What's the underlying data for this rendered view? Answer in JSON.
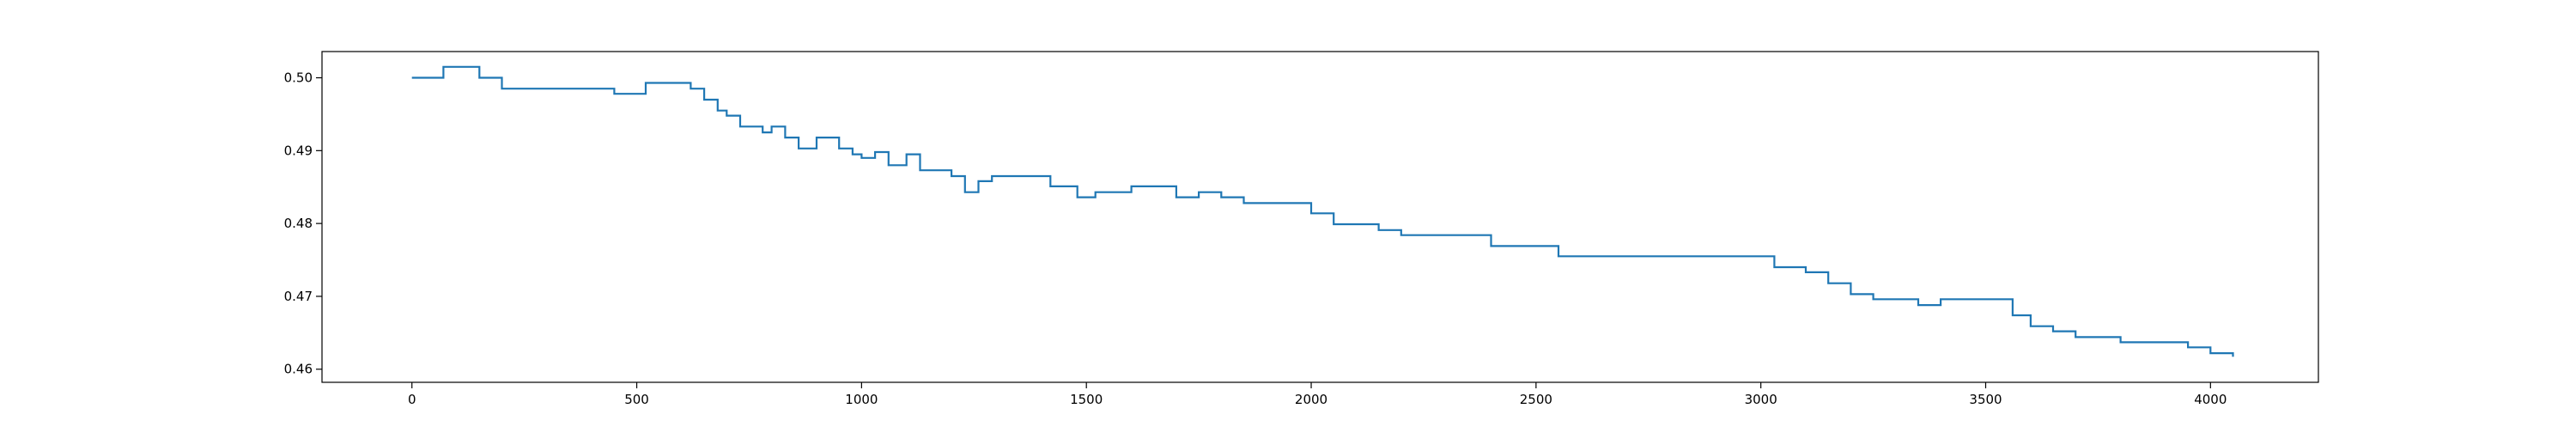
{
  "chart_data": {
    "type": "line",
    "title": "",
    "xlabel": "",
    "ylabel": "",
    "xlim": [
      -200,
      4240
    ],
    "ylim": [
      0.4582,
      0.5036
    ],
    "xticks": [
      0,
      500,
      1000,
      1500,
      2000,
      2500,
      3000,
      3500,
      4000
    ],
    "yticks": [
      0.46,
      0.47,
      0.48,
      0.49,
      0.5
    ],
    "xtick_labels": [
      "0",
      "500",
      "1000",
      "1500",
      "2000",
      "2500",
      "3000",
      "3500",
      "4000"
    ],
    "ytick_labels": [
      "0.46",
      "0.47",
      "0.48",
      "0.49",
      "0.50"
    ],
    "grid": false,
    "line_color": "#1f77b4",
    "series": [
      {
        "x": [
          0,
          70,
          150,
          200,
          400,
          450,
          520,
          620,
          650,
          680,
          700,
          730,
          760,
          780,
          800,
          830,
          860,
          900,
          950,
          980,
          1000,
          1030,
          1060,
          1100,
          1130,
          1160,
          1200,
          1230,
          1260,
          1290,
          1350,
          1420,
          1480,
          1520,
          1600,
          1650,
          1700,
          1750,
          1800,
          1850,
          1900,
          1950,
          2000,
          2050,
          2100,
          2150,
          2200,
          2350,
          2400,
          2480,
          2550,
          2600,
          2700,
          2800,
          2900,
          3000,
          3030,
          3060,
          3100,
          3150,
          3200,
          3250,
          3300,
          3350,
          3400,
          3450,
          3500,
          3560,
          3600,
          3650,
          3700,
          3750,
          3800,
          3850,
          3900,
          3950,
          4000,
          4050
        ],
        "y": [
          0.5,
          0.5015,
          0.5,
          0.4985,
          0.4985,
          0.4978,
          0.4993,
          0.4985,
          0.497,
          0.4955,
          0.4948,
          0.4933,
          0.4933,
          0.4925,
          0.4933,
          0.4918,
          0.4903,
          0.4918,
          0.4903,
          0.4895,
          0.489,
          0.4898,
          0.488,
          0.4895,
          0.4873,
          0.4873,
          0.4865,
          0.4843,
          0.4858,
          0.4865,
          0.4865,
          0.4851,
          0.4836,
          0.4843,
          0.4851,
          0.4851,
          0.4836,
          0.4843,
          0.4836,
          0.4828,
          0.4828,
          0.4828,
          0.4814,
          0.4799,
          0.4799,
          0.4791,
          0.4784,
          0.4784,
          0.4769,
          0.4769,
          0.4755,
          0.4755,
          0.4755,
          0.4755,
          0.4755,
          0.4755,
          0.474,
          0.474,
          0.4733,
          0.4718,
          0.4703,
          0.4696,
          0.4696,
          0.4688,
          0.4696,
          0.4696,
          0.4696,
          0.4674,
          0.4659,
          0.4652,
          0.4644,
          0.4644,
          0.4637,
          0.4637,
          0.4637,
          0.463,
          0.4622,
          0.4617
        ]
      }
    ]
  }
}
